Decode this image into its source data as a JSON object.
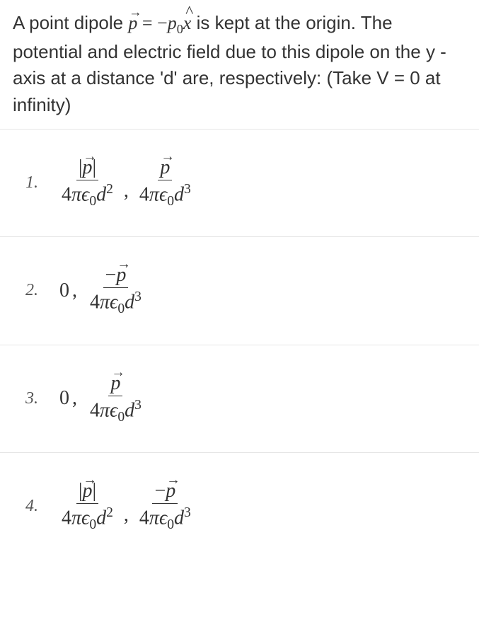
{
  "question": {
    "text_parts": {
      "p1": "A point dipole ",
      "p2": " is kept at the origin. The potential and electric field due to this dipole on the y -axis at a distance 'd' are, respectively: (Take V = 0 at infinity)"
    },
    "font_size": 26,
    "color": "#333333"
  },
  "symbols": {
    "p_vec": "p",
    "x_hat": "x",
    "p0_label": "p",
    "zero_sub": "0",
    "minus": "−",
    "equals": "=",
    "pi": "π",
    "epsilon": "ϵ",
    "d": "d",
    "four": "4",
    "zero": "0",
    "abs_bar": "|",
    "comma": ","
  },
  "options": [
    {
      "number": "1.",
      "type": "opt1"
    },
    {
      "number": "2.",
      "type": "opt2"
    },
    {
      "number": "3.",
      "type": "opt3"
    },
    {
      "number": "4.",
      "type": "opt4"
    }
  ],
  "style": {
    "background_color": "#ffffff",
    "border_color": "#e5e5e5",
    "text_color": "#333333",
    "option_number_color": "#555555",
    "formula_fontsize": 28,
    "option_number_fontsize": 24
  }
}
